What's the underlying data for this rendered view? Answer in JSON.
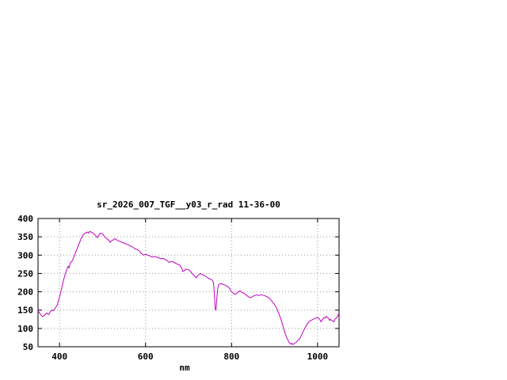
{
  "chart_data": {
    "type": "line",
    "title": "sr_2026_007_TGF__y03_r_rad 11-36-00",
    "xlabel": "nm",
    "ylabel": "",
    "xlim": [
      350,
      1050
    ],
    "ylim": [
      50,
      400
    ],
    "xticks": [
      400,
      600,
      800,
      1000
    ],
    "yticks": [
      50,
      100,
      150,
      200,
      250,
      300,
      350,
      400
    ],
    "grid": true,
    "legend_position": "none",
    "line_color": "#c000c0",
    "grid_color": "#999999",
    "border_color": "#000000",
    "x": [
      350,
      355,
      360,
      365,
      370,
      375,
      378,
      382,
      385,
      390,
      395,
      400,
      405,
      410,
      415,
      420,
      422,
      425,
      430,
      435,
      440,
      445,
      450,
      455,
      460,
      465,
      468,
      470,
      475,
      480,
      485,
      488,
      492,
      495,
      500,
      505,
      510,
      515,
      518,
      520,
      525,
      530,
      535,
      540,
      545,
      550,
      555,
      560,
      565,
      570,
      575,
      580,
      585,
      590,
      595,
      600,
      605,
      610,
      615,
      620,
      625,
      630,
      635,
      640,
      645,
      650,
      655,
      660,
      665,
      670,
      675,
      680,
      685,
      687,
      690,
      695,
      700,
      705,
      710,
      715,
      718,
      720,
      725,
      728,
      730,
      735,
      740,
      745,
      750,
      755,
      758,
      760,
      762,
      764,
      766,
      768,
      770,
      775,
      780,
      785,
      790,
      795,
      800,
      805,
      810,
      812,
      815,
      820,
      822,
      825,
      830,
      835,
      840,
      845,
      850,
      855,
      858,
      860,
      865,
      870,
      875,
      880,
      885,
      890,
      895,
      900,
      905,
      910,
      915,
      920,
      925,
      930,
      935,
      938,
      940,
      942,
      945,
      950,
      955,
      960,
      965,
      970,
      975,
      980,
      985,
      990,
      995,
      1000,
      1005,
      1008,
      1010,
      1015,
      1018,
      1020,
      1025,
      1028,
      1030,
      1035,
      1038,
      1040,
      1045,
      1050
    ],
    "y": [
      148,
      140,
      132,
      136,
      142,
      138,
      145,
      150,
      148,
      155,
      165,
      185,
      210,
      235,
      255,
      270,
      265,
      278,
      285,
      300,
      315,
      330,
      345,
      355,
      360,
      363,
      360,
      365,
      362,
      358,
      352,
      348,
      356,
      360,
      358,
      350,
      345,
      340,
      335,
      338,
      342,
      345,
      340,
      338,
      335,
      333,
      330,
      328,
      325,
      322,
      318,
      315,
      312,
      305,
      300,
      302,
      300,
      298,
      295,
      296,
      295,
      293,
      290,
      291,
      289,
      285,
      280,
      283,
      281,
      278,
      275,
      272,
      262,
      255,
      258,
      262,
      260,
      255,
      248,
      242,
      238,
      243,
      248,
      250,
      248,
      245,
      242,
      238,
      235,
      232,
      225,
      195,
      152,
      150,
      185,
      210,
      220,
      222,
      220,
      218,
      215,
      210,
      200,
      195,
      193,
      196,
      200,
      202,
      200,
      198,
      195,
      190,
      186,
      184,
      188,
      190,
      192,
      191,
      190,
      192,
      190,
      188,
      185,
      180,
      172,
      165,
      155,
      140,
      125,
      105,
      85,
      70,
      60,
      57,
      60,
      56,
      58,
      62,
      68,
      75,
      88,
      100,
      110,
      118,
      122,
      125,
      128,
      130,
      125,
      118,
      122,
      130,
      128,
      133,
      128,
      122,
      125,
      120,
      118,
      125,
      130,
      142
    ]
  }
}
